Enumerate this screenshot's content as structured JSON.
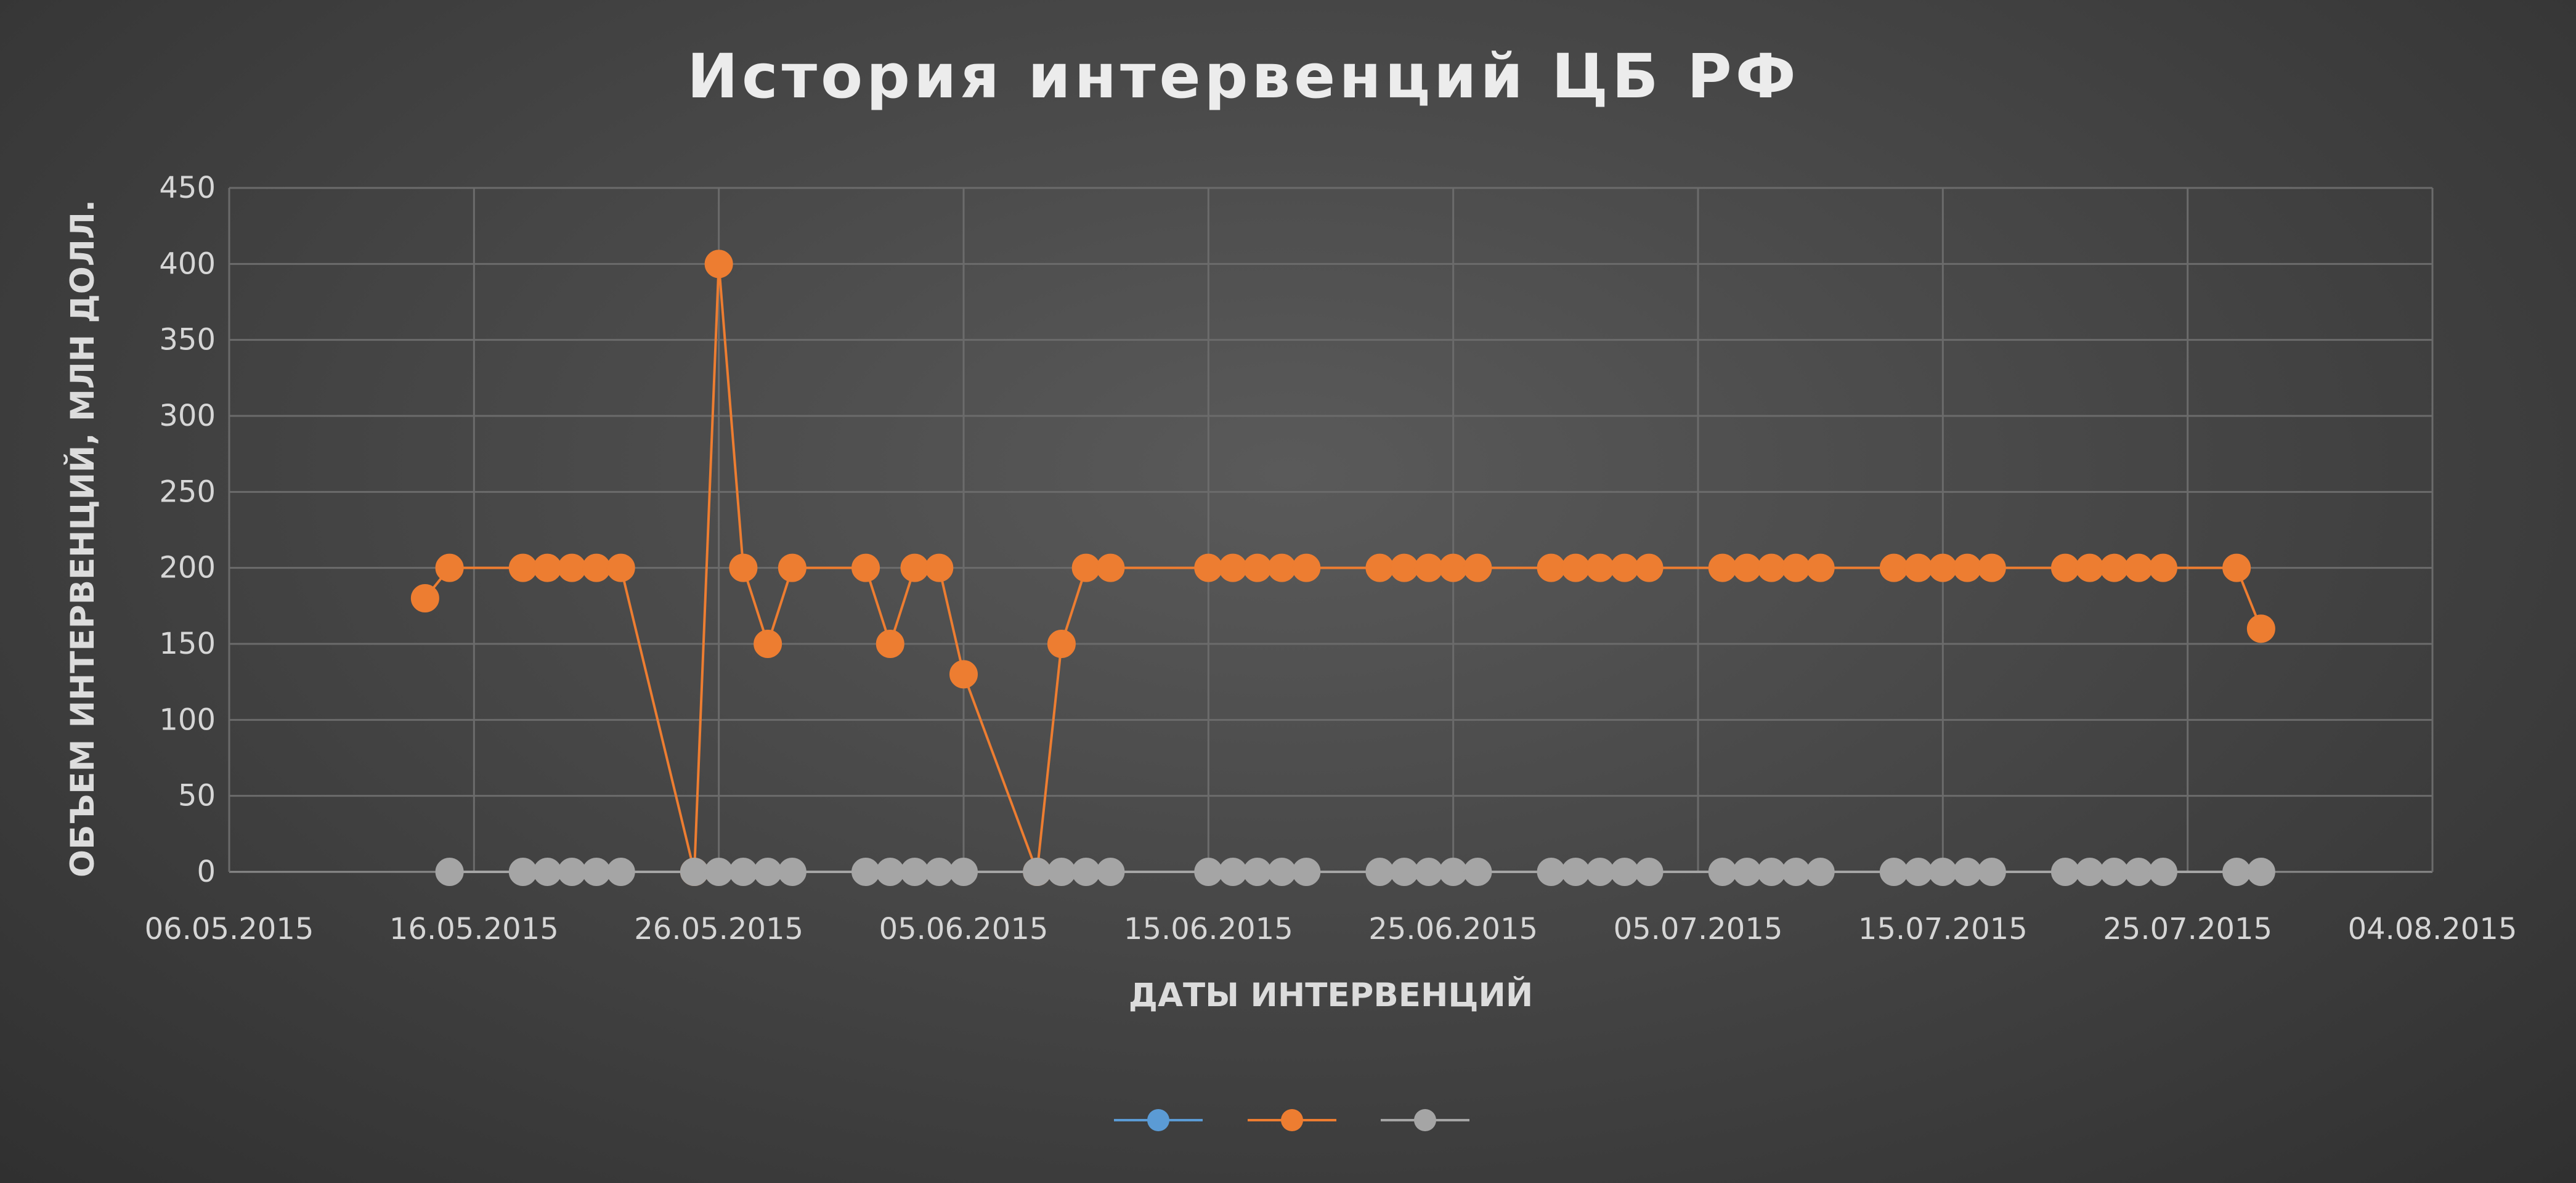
{
  "chart_data": {
    "type": "line",
    "title": "История интервенций ЦБ РФ",
    "xlabel": "ДАТЫ ИНТЕРВЕНЦИЙ",
    "ylabel": "ОБЪЕМ ИНТЕРВЕНЦИЙ, МЛН ДОЛЛ.",
    "x_type": "date",
    "xlim": [
      "2015-05-06",
      "2015-08-04"
    ],
    "ylim": [
      0,
      450
    ],
    "x_ticks": [
      "06.05.2015",
      "16.05.2015",
      "26.05.2015",
      "05.06.2015",
      "15.06.2015",
      "25.06.2015",
      "05.07.2015",
      "15.07.2015",
      "25.07.2015",
      "04.08.2015"
    ],
    "y_ticks": [
      0,
      50,
      100,
      150,
      200,
      250,
      300,
      350,
      400,
      450
    ],
    "grid": true,
    "legend_position": "bottom",
    "series": [
      {
        "color": "#5b9bd5",
        "x": [],
        "values": []
      },
      {
        "color": "#ed7d31",
        "x": [
          "2015-05-14",
          "2015-05-15",
          "2015-05-18",
          "2015-05-19",
          "2015-05-20",
          "2015-05-21",
          "2015-05-22",
          "2015-05-25",
          "2015-05-26",
          "2015-05-27",
          "2015-05-28",
          "2015-05-29",
          "2015-06-01",
          "2015-06-02",
          "2015-06-03",
          "2015-06-04",
          "2015-06-05",
          "2015-06-08",
          "2015-06-09",
          "2015-06-10",
          "2015-06-11",
          "2015-06-15",
          "2015-06-16",
          "2015-06-17",
          "2015-06-18",
          "2015-06-19",
          "2015-06-22",
          "2015-06-23",
          "2015-06-24",
          "2015-06-25",
          "2015-06-26",
          "2015-06-29",
          "2015-06-30",
          "2015-07-01",
          "2015-07-02",
          "2015-07-03",
          "2015-07-06",
          "2015-07-07",
          "2015-07-08",
          "2015-07-09",
          "2015-07-10",
          "2015-07-13",
          "2015-07-14",
          "2015-07-15",
          "2015-07-16",
          "2015-07-17",
          "2015-07-20",
          "2015-07-21",
          "2015-07-22",
          "2015-07-23",
          "2015-07-24",
          "2015-07-27",
          "2015-07-28"
        ],
        "values": [
          180,
          200,
          200,
          200,
          200,
          200,
          200,
          0,
          400,
          200,
          150,
          200,
          200,
          150,
          200,
          200,
          130,
          0,
          150,
          200,
          200,
          200,
          200,
          200,
          200,
          200,
          200,
          200,
          200,
          200,
          200,
          200,
          200,
          200,
          200,
          200,
          200,
          200,
          200,
          200,
          200,
          200,
          200,
          200,
          200,
          200,
          200,
          200,
          200,
          200,
          200,
          200,
          160
        ]
      },
      {
        "color": "#a5a5a5",
        "x": [
          "2015-05-15",
          "2015-05-18",
          "2015-05-19",
          "2015-05-20",
          "2015-05-21",
          "2015-05-22",
          "2015-05-25",
          "2015-05-26",
          "2015-05-27",
          "2015-05-28",
          "2015-05-29",
          "2015-06-01",
          "2015-06-02",
          "2015-06-03",
          "2015-06-04",
          "2015-06-05",
          "2015-06-08",
          "2015-06-09",
          "2015-06-10",
          "2015-06-11",
          "2015-06-15",
          "2015-06-16",
          "2015-06-17",
          "2015-06-18",
          "2015-06-19",
          "2015-06-22",
          "2015-06-23",
          "2015-06-24",
          "2015-06-25",
          "2015-06-26",
          "2015-06-29",
          "2015-06-30",
          "2015-07-01",
          "2015-07-02",
          "2015-07-03",
          "2015-07-06",
          "2015-07-07",
          "2015-07-08",
          "2015-07-09",
          "2015-07-10",
          "2015-07-13",
          "2015-07-14",
          "2015-07-15",
          "2015-07-16",
          "2015-07-17",
          "2015-07-20",
          "2015-07-21",
          "2015-07-22",
          "2015-07-23",
          "2015-07-24",
          "2015-07-27",
          "2015-07-28"
        ],
        "values": [
          0,
          0,
          0,
          0,
          0,
          0,
          0,
          0,
          0,
          0,
          0,
          0,
          0,
          0,
          0,
          0,
          0,
          0,
          0,
          0,
          0,
          0,
          0,
          0,
          0,
          0,
          0,
          0,
          0,
          0,
          0,
          0,
          0,
          0,
          0,
          0,
          0,
          0,
          0,
          0,
          0,
          0,
          0,
          0,
          0,
          0,
          0,
          0,
          0,
          0,
          0,
          0
        ]
      }
    ]
  }
}
